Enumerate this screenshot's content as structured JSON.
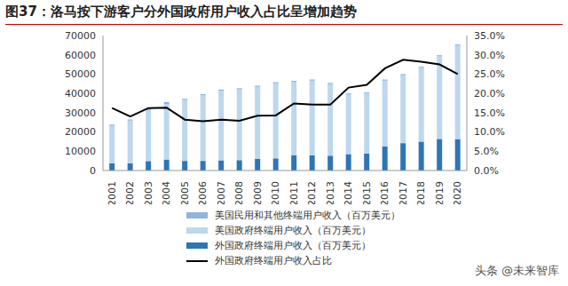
{
  "chart_data": {
    "type": "bar",
    "title": "图37：洛马按下游客户分外国政府用户收入占比呈增加趋势",
    "annotations": [
      "头条 @未来智库"
    ],
    "stacked": true,
    "categories": [
      "2001",
      "2002",
      "2003",
      "2004",
      "2005",
      "2006",
      "2007",
      "2008",
      "2009",
      "2010",
      "2011",
      "2012",
      "2013",
      "2014",
      "2015",
      "2016",
      "2017",
      "2018",
      "2019",
      "2020"
    ],
    "series": [
      {
        "name": "美国民用和其他终端用户收入（百万美元）",
        "type": "bar",
        "color": "#8fb4de",
        "values": [
          600,
          600,
          600,
          1000,
          600,
          600,
          600,
          600,
          600,
          600,
          600,
          600,
          600,
          600,
          600,
          600,
          600,
          600,
          600,
          600
        ]
      },
      {
        "name": "美国政府终端用户收入（百万美元）",
        "type": "bar",
        "color": "#bdd7ee",
        "values": [
          19400,
          22200,
          26300,
          28800,
          31600,
          34000,
          36100,
          36700,
          37400,
          38900,
          37900,
          38700,
          37100,
          30900,
          31100,
          34100,
          35200,
          38200,
          42800,
          48500
        ]
      },
      {
        "name": "外国政府终端用户收入（百万美元）",
        "type": "bar",
        "color": "#2e75b6",
        "values": [
          3800,
          3700,
          4900,
          5700,
          5000,
          5000,
          5300,
          5400,
          6000,
          6300,
          8000,
          7900,
          7700,
          8500,
          8800,
          12500,
          14200,
          15000,
          16400,
          16300
        ]
      },
      {
        "name": "外国政府终端用户收入占比",
        "type": "line",
        "axis": "y2",
        "color": "#000000",
        "values": [
          16.2,
          14.0,
          16.2,
          16.3,
          13.2,
          12.8,
          13.2,
          12.9,
          14.2,
          14.3,
          17.4,
          17.1,
          17.1,
          21.5,
          22.2,
          26.5,
          28.7,
          28.2,
          27.5,
          25.0
        ]
      }
    ],
    "ylim": [
      0,
      70000
    ],
    "yticks": [
      0,
      10000,
      20000,
      30000,
      40000,
      50000,
      60000,
      70000
    ],
    "y2lim": [
      0,
      35
    ],
    "y2ticks": [
      {
        "value": 0,
        "label": "0.0%"
      },
      {
        "value": 5,
        "label": "5.0%"
      },
      {
        "value": 10,
        "label": "10.0%"
      },
      {
        "value": 15,
        "label": "15.0%"
      },
      {
        "value": 20,
        "label": "20.0%"
      },
      {
        "value": 25,
        "label": "25.0%"
      },
      {
        "value": 30,
        "label": "30.0%"
      },
      {
        "value": 35,
        "label": "35.0%"
      }
    ],
    "grid": false
  }
}
